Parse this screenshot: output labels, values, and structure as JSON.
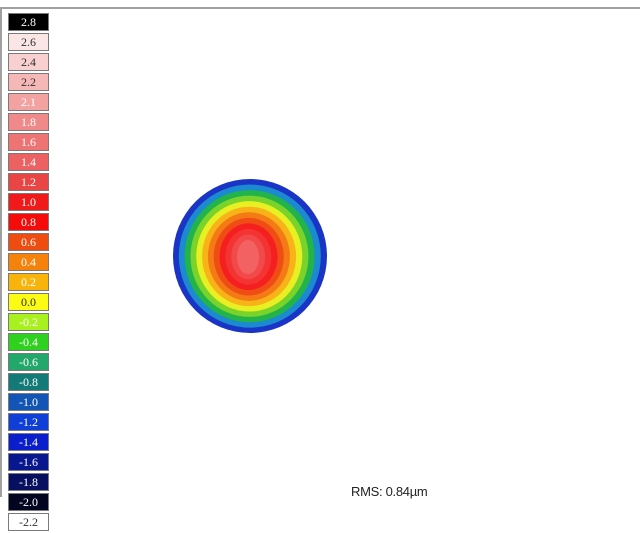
{
  "legend": {
    "entries": [
      {
        "label": "2.8",
        "color": "#000000",
        "text": "light"
      },
      {
        "label": "2.6",
        "color": "#fbe6e6",
        "text": "dark"
      },
      {
        "label": "2.4",
        "color": "#f9d0d0",
        "text": "dark"
      },
      {
        "label": "2.2",
        "color": "#f6b7b7",
        "text": "dark"
      },
      {
        "label": "2.1",
        "color": "#f3a2a2",
        "text": "light"
      },
      {
        "label": "1.8",
        "color": "#f08a8a",
        "text": "light"
      },
      {
        "label": "1.6",
        "color": "#ee7474",
        "text": "light"
      },
      {
        "label": "1.4",
        "color": "#ec6262",
        "text": "light"
      },
      {
        "label": "1.2",
        "color": "#e94545",
        "text": "light"
      },
      {
        "label": "1.0",
        "color": "#f01a1a",
        "text": "light"
      },
      {
        "label": "0.8",
        "color": "#f60b0b",
        "text": "light"
      },
      {
        "label": "0.6",
        "color": "#ee4d10",
        "text": "light"
      },
      {
        "label": "0.4",
        "color": "#f5820a",
        "text": "light"
      },
      {
        "label": "0.2",
        "color": "#f9b40c",
        "text": "light"
      },
      {
        "label": "0.0",
        "color": "#fbfb14",
        "text": "dark"
      },
      {
        "label": "-0.2",
        "color": "#a8f01e",
        "text": "light"
      },
      {
        "label": "-0.4",
        "color": "#2ed11e",
        "text": "light"
      },
      {
        "label": "-0.6",
        "color": "#23a86b",
        "text": "light"
      },
      {
        "label": "-0.8",
        "color": "#137a78",
        "text": "light"
      },
      {
        "label": "-1.0",
        "color": "#1355b4",
        "text": "light"
      },
      {
        "label": "-1.2",
        "color": "#0f3fd6",
        "text": "light"
      },
      {
        "label": "-1.4",
        "color": "#0a1ecc",
        "text": "light"
      },
      {
        "label": "-1.6",
        "color": "#09178f",
        "text": "light"
      },
      {
        "label": "-1.8",
        "color": "#071060",
        "text": "light"
      },
      {
        "label": "-2.0",
        "color": "#020520",
        "text": "light"
      },
      {
        "label": "-2.2",
        "color": "#ffffff",
        "text": "dark"
      }
    ]
  },
  "rms": {
    "text": "RMS: 0.84µm"
  },
  "map": {
    "rings": [
      "#1a35c6",
      "#1c8ad0",
      "#22b34a",
      "#79d32a",
      "#e8ef22",
      "#f8b318",
      "#f37a14",
      "#ef4c16",
      "#f51f1f",
      "#f43333",
      "#f24a4a",
      "#f26262"
    ]
  }
}
